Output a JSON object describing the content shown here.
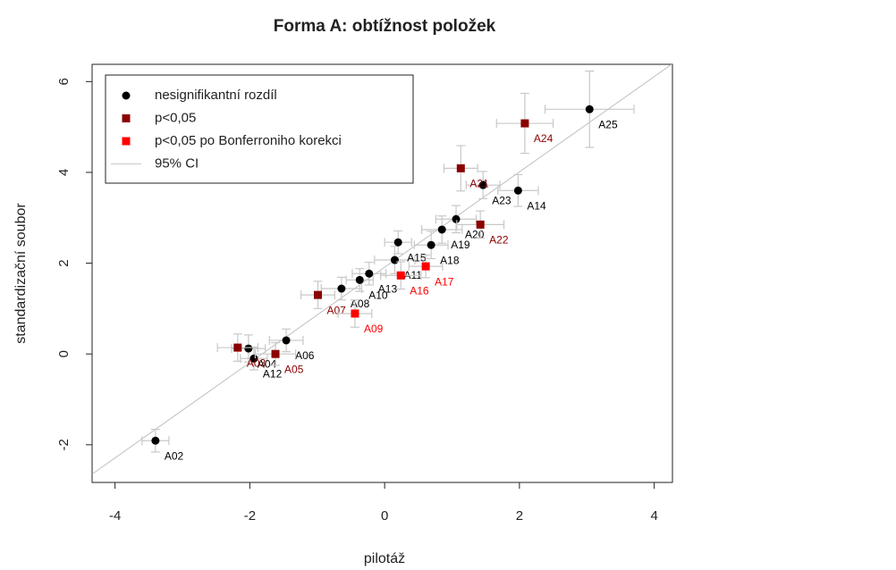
{
  "chart_data": {
    "type": "scatter",
    "title": "Forma A: obtížnost položek",
    "xlabel": "pilotáž",
    "ylabel": "standardizační soubor",
    "xlim": [
      -4.34,
      4.27
    ],
    "ylim": [
      -2.83,
      6.38
    ],
    "xticks": [
      -4,
      -2,
      0,
      2,
      4
    ],
    "yticks": [
      -2,
      0,
      2,
      4,
      6
    ],
    "ci_label": "95% CI",
    "ci_color": "#c8c8c8",
    "line": {
      "intercept": 1.91,
      "slope": 1.05
    },
    "series": [
      {
        "name": "nesignifikantní rozdíl",
        "color": "#000000",
        "marker": "circle",
        "labels": [
          "A02",
          "A25",
          "A23",
          "A14",
          "A20",
          "A19",
          "A18",
          "A15",
          "A11",
          "A13",
          "A10",
          "A08",
          "A06",
          "A12",
          "A04"
        ],
        "x": [
          -3.4,
          3.04,
          1.46,
          1.98,
          1.06,
          0.85,
          0.69,
          0.2,
          0.15,
          -0.23,
          -0.37,
          -0.64,
          -1.46,
          -1.94,
          -2.02
        ],
        "y": [
          -1.91,
          5.39,
          3.72,
          3.6,
          2.97,
          2.74,
          2.4,
          2.46,
          2.07,
          1.77,
          1.63,
          1.44,
          0.3,
          -0.1,
          0.12
        ],
        "xerr": [
          0.2,
          0.66,
          0.25,
          0.3,
          0.3,
          0.3,
          0.25,
          0.2,
          0.3,
          0.25,
          0.2,
          0.3,
          0.25,
          0.2,
          0.25
        ],
        "yerr": [
          0.25,
          0.84,
          0.3,
          0.35,
          0.3,
          0.3,
          0.3,
          0.25,
          0.3,
          0.25,
          0.25,
          0.25,
          0.25,
          0.25,
          0.3
        ]
      },
      {
        "name": "p<0,05",
        "color": "#8b0000",
        "marker": "square",
        "labels": [
          "A24",
          "A21",
          "A22",
          "A07",
          "A05",
          "A03"
        ],
        "x": [
          2.08,
          1.13,
          1.42,
          -0.99,
          -1.62,
          -2.18
        ],
        "y": [
          5.08,
          4.09,
          2.85,
          1.3,
          0.0,
          0.14
        ],
        "xerr": [
          0.42,
          0.25,
          0.35,
          0.25,
          0.3,
          0.3
        ],
        "yerr": [
          0.66,
          0.5,
          0.3,
          0.3,
          0.25,
          0.3
        ]
      },
      {
        "name": "p<0,05 po Bonferroniho korekci",
        "color": "#ff0000",
        "marker": "square",
        "labels": [
          "A17",
          "A16",
          "A09"
        ],
        "x": [
          0.61,
          0.24,
          -0.44
        ],
        "y": [
          1.93,
          1.73,
          0.89
        ],
        "xerr": [
          0.25,
          0.3,
          0.25
        ],
        "yerr": [
          0.25,
          0.3,
          0.3
        ]
      }
    ]
  }
}
